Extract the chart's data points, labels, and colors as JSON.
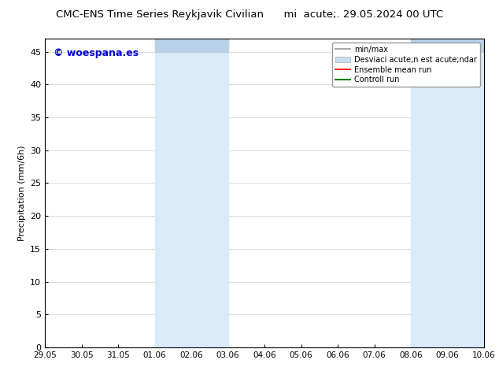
{
  "title": "CMC-ENS Time Series Reykjavik Civilian",
  "title2": "mi  acute;. 29.05.2024 00 UTC",
  "ylabel": "Precipitation (mm/6h)",
  "watermark": "© woespana.es",
  "x_ticks": [
    "29.05",
    "30.05",
    "31.05",
    "01.06",
    "02.06",
    "03.06",
    "04.06",
    "05.06",
    "06.06",
    "07.06",
    "08.06",
    "09.06",
    "10.06"
  ],
  "x_tick_positions": [
    0,
    1,
    2,
    3,
    4,
    5,
    6,
    7,
    8,
    9,
    10,
    11,
    12
  ],
  "ylim": [
    0,
    47
  ],
  "yticks": [
    0,
    5,
    10,
    15,
    20,
    25,
    30,
    35,
    40,
    45
  ],
  "shade_regions": [
    {
      "xstart": 3,
      "xend": 5,
      "color": "#daeaf8"
    },
    {
      "xstart": 10,
      "xend": 12,
      "color": "#daeaf8"
    }
  ],
  "top_shade_regions": [
    {
      "xstart": 3,
      "xend": 5,
      "color": "#b8d0e8"
    },
    {
      "xstart": 10,
      "xend": 12,
      "color": "#b8d0e8"
    }
  ],
  "legend_label_minmax": "min/max",
  "legend_label_std": "Desviaci acute;n est acute;ndar",
  "legend_label_ensemble": "Ensemble mean run",
  "legend_label_control": "Controll run",
  "legend_color_minmax": "#aaaaaa",
  "legend_color_std": "#c8dff0",
  "legend_color_ensemble": "red",
  "legend_color_control": "green",
  "background_color": "#ffffff",
  "watermark_color": "#0000cc",
  "grid_color": "#cccccc",
  "spine_color": "#000000"
}
